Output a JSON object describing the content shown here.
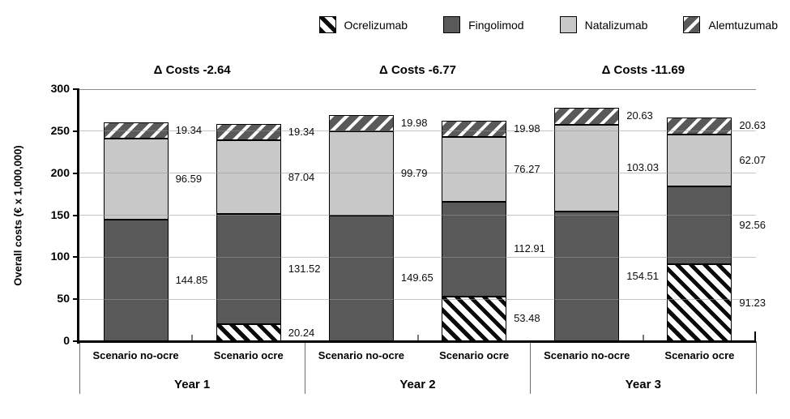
{
  "chart_data": {
    "type": "bar",
    "subtype": "stacked-vertical",
    "title": "",
    "ylabel": "Overall costs (€ x 1,000,000)",
    "ylim": [
      0,
      300
    ],
    "yticks": [
      0,
      50,
      100,
      150,
      200,
      250,
      300
    ],
    "grid": "horizontal",
    "legend_position": "top-right",
    "series": [
      {
        "name": "Ocrelizumab",
        "pattern": "black-diagonal-hatch-on-white",
        "color": "#ffffff"
      },
      {
        "name": "Fingolimod",
        "pattern": "solid",
        "color": "#595959"
      },
      {
        "name": "Natalizumab",
        "pattern": "solid",
        "color": "#c8c8c8"
      },
      {
        "name": "Alemtuzumab",
        "pattern": "white-diagonal-hatch-on-dark",
        "color": "#595959"
      }
    ],
    "groups": [
      {
        "label": "Year 1",
        "delta_label": "Δ Costs -2.64",
        "bars": [
          {
            "label": "Scenario no-ocre",
            "values": [
              null,
              144.85,
              96.59,
              19.34
            ]
          },
          {
            "label": "Scenario ocre",
            "values": [
              20.24,
              131.52,
              87.04,
              19.34
            ]
          }
        ]
      },
      {
        "label": "Year 2",
        "delta_label": "Δ Costs -6.77",
        "bars": [
          {
            "label": "Scenario no-ocre",
            "values": [
              null,
              149.65,
              99.79,
              19.98
            ]
          },
          {
            "label": "Scenario ocre",
            "values": [
              53.48,
              112.91,
              76.27,
              19.98
            ]
          }
        ]
      },
      {
        "label": "Year 3",
        "delta_label": "Δ Costs -11.69",
        "bars": [
          {
            "label": "Scenario no-ocre",
            "values": [
              null,
              154.51,
              103.03,
              20.63
            ]
          },
          {
            "label": "Scenario ocre",
            "values": [
              91.23,
              92.56,
              62.07,
              20.63
            ]
          }
        ]
      }
    ]
  }
}
